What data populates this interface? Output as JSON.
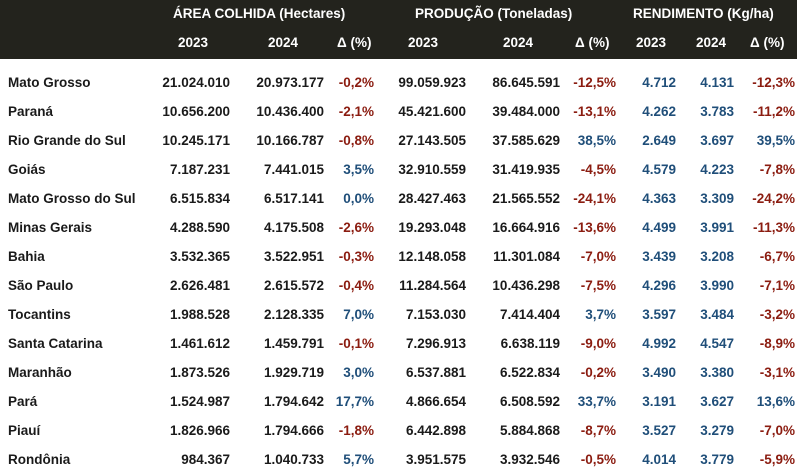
{
  "header": {
    "groups": [
      "ÁREA COLHIDA  (Hectares)",
      "PRODUÇÃO  (Toneladas)",
      "RENDIMENTO (Kg/ha)"
    ],
    "years": [
      "2023",
      "2024",
      "Δ (%)",
      "2023",
      "2024",
      "Δ (%)",
      "2023",
      "2024",
      "Δ (%)"
    ]
  },
  "rows": [
    {
      "state": "Mato Grosso",
      "area_2023": "21.024.010",
      "area_2024": "20.973.177",
      "area_delta": "-0,2%",
      "prod_2023": "99.059.923",
      "prod_2024": "86.645.591",
      "prod_delta": "-12,5%",
      "rend_2023": "4.712",
      "rend_2024": "4.131",
      "rend_delta": "-12,3%"
    },
    {
      "state": "Paraná",
      "area_2023": "10.656.200",
      "area_2024": "10.436.400",
      "area_delta": "-2,1%",
      "prod_2023": "45.421.600",
      "prod_2024": "39.484.000",
      "prod_delta": "-13,1%",
      "rend_2023": "4.262",
      "rend_2024": "3.783",
      "rend_delta": "-11,2%"
    },
    {
      "state": "Rio Grande do Sul",
      "area_2023": "10.245.171",
      "area_2024": "10.166.787",
      "area_delta": "-0,8%",
      "prod_2023": "27.143.505",
      "prod_2024": "37.585.629",
      "prod_delta": "38,5%",
      "rend_2023": "2.649",
      "rend_2024": "3.697",
      "rend_delta": "39,5%"
    },
    {
      "state": "Goiás",
      "area_2023": "7.187.231",
      "area_2024": "7.441.015",
      "area_delta": "3,5%",
      "prod_2023": "32.910.559",
      "prod_2024": "31.419.935",
      "prod_delta": "-4,5%",
      "rend_2023": "4.579",
      "rend_2024": "4.223",
      "rend_delta": "-7,8%"
    },
    {
      "state": "Mato Grosso do Sul",
      "area_2023": "6.515.834",
      "area_2024": "6.517.141",
      "area_delta": "0,0%",
      "prod_2023": "28.427.463",
      "prod_2024": "21.565.552",
      "prod_delta": "-24,1%",
      "rend_2023": "4.363",
      "rend_2024": "3.309",
      "rend_delta": "-24,2%"
    },
    {
      "state": "Minas Gerais",
      "area_2023": "4.288.590",
      "area_2024": "4.175.508",
      "area_delta": "-2,6%",
      "prod_2023": "19.293.048",
      "prod_2024": "16.664.916",
      "prod_delta": "-13,6%",
      "rend_2023": "4.499",
      "rend_2024": "3.991",
      "rend_delta": "-11,3%"
    },
    {
      "state": "Bahia",
      "area_2023": "3.532.365",
      "area_2024": "3.522.951",
      "area_delta": "-0,3%",
      "prod_2023": "12.148.058",
      "prod_2024": "11.301.084",
      "prod_delta": "-7,0%",
      "rend_2023": "3.439",
      "rend_2024": "3.208",
      "rend_delta": "-6,7%"
    },
    {
      "state": "São Paulo",
      "area_2023": "2.626.481",
      "area_2024": "2.615.572",
      "area_delta": "-0,4%",
      "prod_2023": "11.284.564",
      "prod_2024": "10.436.298",
      "prod_delta": "-7,5%",
      "rend_2023": "4.296",
      "rend_2024": "3.990",
      "rend_delta": "-7,1%"
    },
    {
      "state": "Tocantins",
      "area_2023": "1.988.528",
      "area_2024": "2.128.335",
      "area_delta": "7,0%",
      "prod_2023": "7.153.030",
      "prod_2024": "7.414.404",
      "prod_delta": "3,7%",
      "rend_2023": "3.597",
      "rend_2024": "3.484",
      "rend_delta": "-3,2%"
    },
    {
      "state": "Santa Catarina",
      "area_2023": "1.461.612",
      "area_2024": "1.459.791",
      "area_delta": "-0,1%",
      "prod_2023": "7.296.913",
      "prod_2024": "6.638.119",
      "prod_delta": "-9,0%",
      "rend_2023": "4.992",
      "rend_2024": "4.547",
      "rend_delta": "-8,9%"
    },
    {
      "state": "Maranhão",
      "area_2023": "1.873.526",
      "area_2024": "1.929.719",
      "area_delta": "3,0%",
      "prod_2023": "6.537.881",
      "prod_2024": "6.522.834",
      "prod_delta": "-0,2%",
      "rend_2023": "3.490",
      "rend_2024": "3.380",
      "rend_delta": "-3,1%"
    },
    {
      "state": "Pará",
      "area_2023": "1.524.987",
      "area_2024": "1.794.642",
      "area_delta": "17,7%",
      "prod_2023": "4.866.654",
      "prod_2024": "6.508.592",
      "prod_delta": "33,7%",
      "rend_2023": "3.191",
      "rend_2024": "3.627",
      "rend_delta": "13,6%"
    },
    {
      "state": "Piauí",
      "area_2023": "1.826.966",
      "area_2024": "1.794.666",
      "area_delta": "-1,8%",
      "prod_2023": "6.442.898",
      "prod_2024": "5.884.868",
      "prod_delta": "-8,7%",
      "rend_2023": "3.527",
      "rend_2024": "3.279",
      "rend_delta": "-7,0%"
    },
    {
      "state": "Rondônia",
      "area_2023": "984.367",
      "area_2024": "1.040.733",
      "area_delta": "5,7%",
      "prod_2023": "3.951.575",
      "prod_2024": "3.932.546",
      "prod_delta": "-0,5%",
      "rend_2023": "4.014",
      "rend_2024": "3.779",
      "rend_delta": "-5,9%"
    }
  ],
  "colors": {
    "header_bg": "#23231d",
    "negative": "#8b1c10",
    "positive": "#1f4e79",
    "yield_value": "#1f4e79"
  }
}
